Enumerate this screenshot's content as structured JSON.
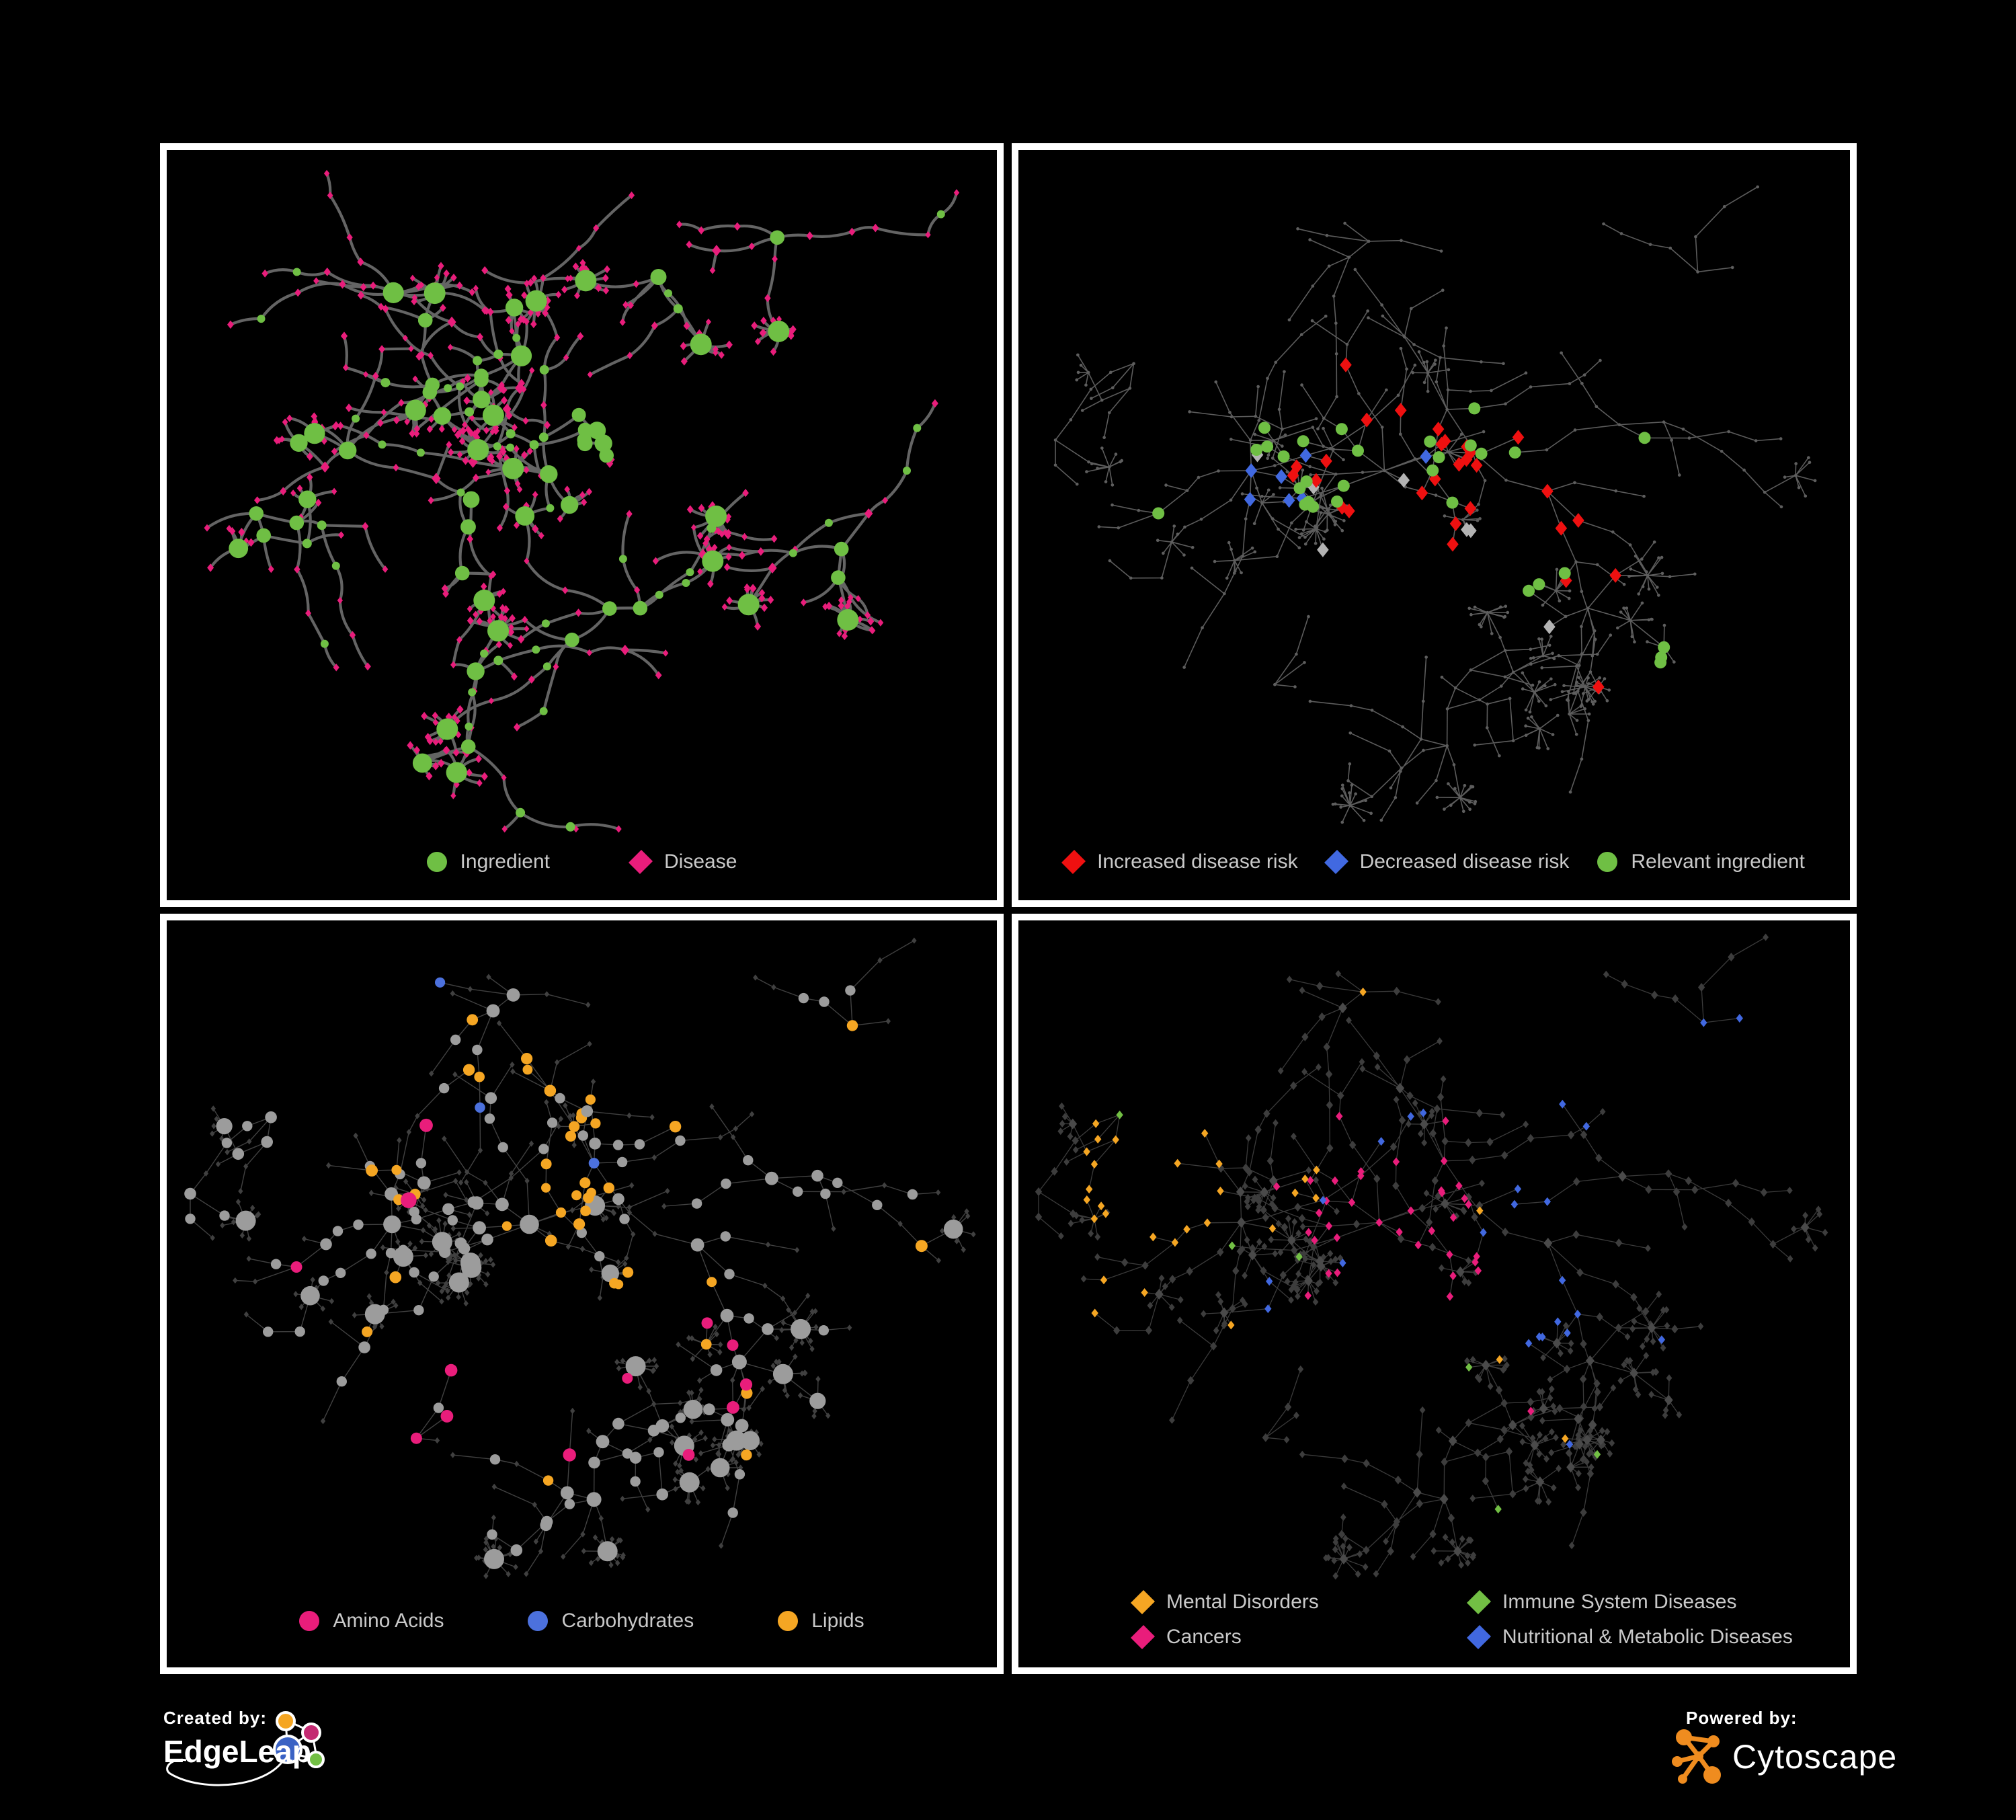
{
  "page": {
    "background": "#000000",
    "frame_color": "#ffffff",
    "legend_text_color": "#c9c9c9"
  },
  "panels": [
    {
      "name": "ingredient-disease-network",
      "legend": [
        {
          "label": "Ingredient",
          "shape": "circle",
          "color": "#6fbf44"
        },
        {
          "label": "Disease",
          "shape": "diamond",
          "color": "#e91d7b"
        }
      ]
    },
    {
      "name": "disease-risk-network",
      "legend": [
        {
          "label": "Increased disease risk",
          "shape": "diamond",
          "color": "#ef1010"
        },
        {
          "label": "Decreased disease risk",
          "shape": "diamond",
          "color": "#4169e1"
        },
        {
          "label": "Relevant ingredient",
          "shape": "circle",
          "color": "#6fbf44"
        }
      ]
    },
    {
      "name": "nutrient-class-network",
      "legend": [
        {
          "label": "Amino Acids",
          "shape": "circle",
          "color": "#e91d7b"
        },
        {
          "label": "Carbohydrates",
          "shape": "circle",
          "color": "#4c71dd"
        },
        {
          "label": "Lipids",
          "shape": "circle",
          "color": "#f5a623"
        }
      ]
    },
    {
      "name": "disease-class-network",
      "legend": [
        {
          "label": "Mental Disorders",
          "shape": "diamond",
          "color": "#f5a623"
        },
        {
          "label": "Immune System Diseases",
          "shape": "diamond",
          "color": "#72bf44"
        },
        {
          "label": "Cancers",
          "shape": "diamond",
          "color": "#e91d7b"
        },
        {
          "label": "Nutritional & Metabolic Diseases",
          "shape": "diamond",
          "color": "#4168e0"
        }
      ]
    }
  ],
  "network": {
    "panel1": {
      "edge": "#6d6d6d",
      "ingredient": "#6fbf44",
      "disease": "#e91d7b"
    },
    "panel2": {
      "edge": "#6c6c6c",
      "node": "#5e5e5e",
      "increased": "#ef1010",
      "decreased": "#4169e1",
      "neutral": "#b3b3b3",
      "ingredient": "#6fbf44"
    },
    "panel3": {
      "edge": "#9c9c9c",
      "hub": "#9c9c9c",
      "leaf": "#404040",
      "amino": "#e91d7b",
      "carbs": "#4c71dd",
      "lipids": "#f5a623"
    },
    "panel4": {
      "edge": "#9c9c9c",
      "node": "#3d3d3d",
      "hub": "#4a4a4a",
      "mental": "#f5a623",
      "immune": "#72bf44",
      "cancers": "#e91d7b",
      "metabolic": "#4168e0"
    }
  },
  "footer": {
    "created_by_label": "Created by:",
    "created_by_name": "EdgeLeap",
    "powered_by_label": "Powered by:",
    "powered_by_name": "Cytoscape",
    "cytoscape_orange": "#ef8c1f"
  }
}
